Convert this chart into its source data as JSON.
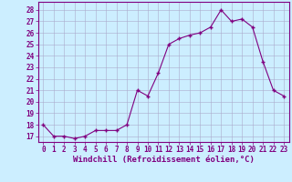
{
  "x": [
    0,
    1,
    2,
    3,
    4,
    5,
    6,
    7,
    8,
    9,
    10,
    11,
    12,
    13,
    14,
    15,
    16,
    17,
    18,
    19,
    20,
    21,
    22,
    23
  ],
  "y": [
    18,
    17,
    17,
    16.8,
    17,
    17.5,
    17.5,
    17.5,
    18,
    21,
    20.5,
    22.5,
    25,
    25.5,
    25.8,
    26,
    26.5,
    28,
    27,
    27.2,
    26.5,
    23.5,
    21,
    20.5
  ],
  "line_color": "#800080",
  "marker_color": "#800080",
  "bg_color": "#cceeff",
  "grid_color": "#aaaacc",
  "xlabel": "Windchill (Refroidissement éolien,°C)",
  "ylabel_ticks": [
    17,
    18,
    19,
    20,
    21,
    22,
    23,
    24,
    25,
    26,
    27,
    28
  ],
  "ylim": [
    16.5,
    28.7
  ],
  "xlim": [
    -0.5,
    23.5
  ],
  "tick_fontsize": 5.5,
  "xlabel_fontsize": 6.5,
  "axis_label_color": "#800080",
  "border_color": "#800080"
}
